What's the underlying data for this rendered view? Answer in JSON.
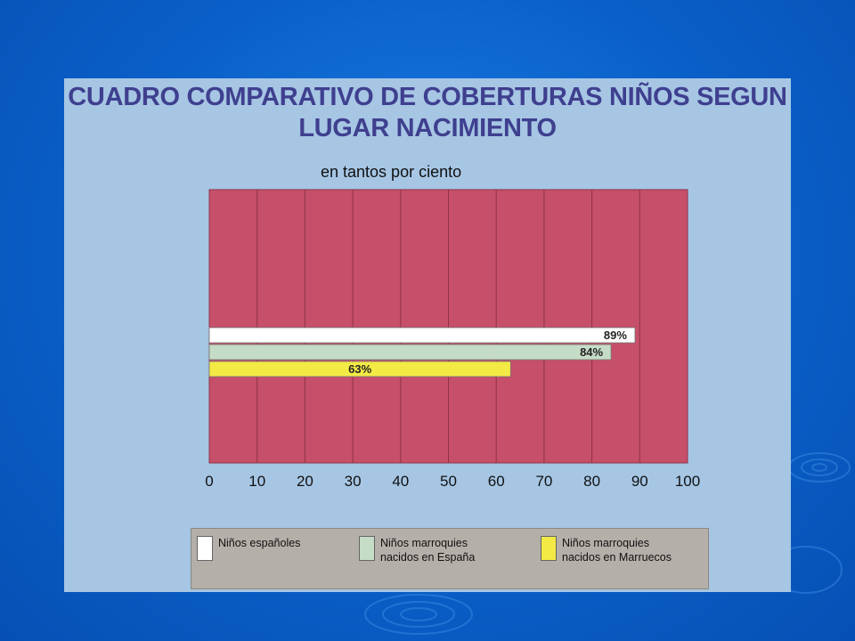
{
  "chart_data": {
    "type": "bar",
    "orientation": "horizontal",
    "title": "CUADRO COMPARATIVO DE COBERTURAS NIÑOS SEGUN LUGAR NACIMIENTO",
    "subtitle": "en tantos por ciento",
    "xlim": [
      0,
      100
    ],
    "xticks": [
      "0",
      "10",
      "20",
      "30",
      "40",
      "50",
      "60",
      "70",
      "80",
      "90",
      "100"
    ],
    "grid": true,
    "legend_position": "bottom",
    "plot_background": "#c64f6a",
    "series": [
      {
        "name": "Niños españoles",
        "value": 89,
        "label": "89%",
        "color": "#ffffff"
      },
      {
        "name": "Niños marroquies\nnacidos en España",
        "value": 84,
        "label": "84%",
        "color": "#c5dcc6"
      },
      {
        "name": "Niños marroquies\nnacidos en Marruecos",
        "value": 63,
        "label": "63%",
        "color": "#f3ea45"
      }
    ]
  }
}
